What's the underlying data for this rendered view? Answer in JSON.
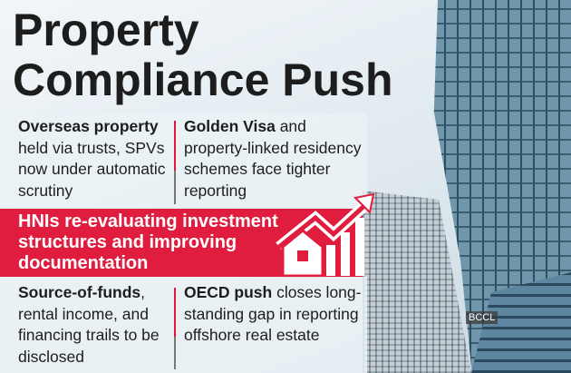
{
  "title": {
    "line1": "Property",
    "line2": "Compliance Push"
  },
  "top_left": {
    "bold": "Overseas property",
    "rest": "held via trusts, SPVs now under automatic scrutiny"
  },
  "top_right": {
    "bold": "Golden Visa",
    "rest": " and property-linked residency schemes face tighter reporting"
  },
  "highlight": {
    "text": "HNIs re-evaluating investment structures and improving documentation"
  },
  "bottom_left": {
    "bold": "Source-of-funds",
    "rest": ", rental income, and financing trails to be disclosed"
  },
  "bottom_right": {
    "bold": "OECD push",
    "rest": " closes long-standing gap in reporting offshore real estate"
  },
  "watermark": "BCCL",
  "colors": {
    "accent": "#e11d3f",
    "text": "#1d1d1d"
  },
  "icon": "house-with-rising-arrow-icon"
}
